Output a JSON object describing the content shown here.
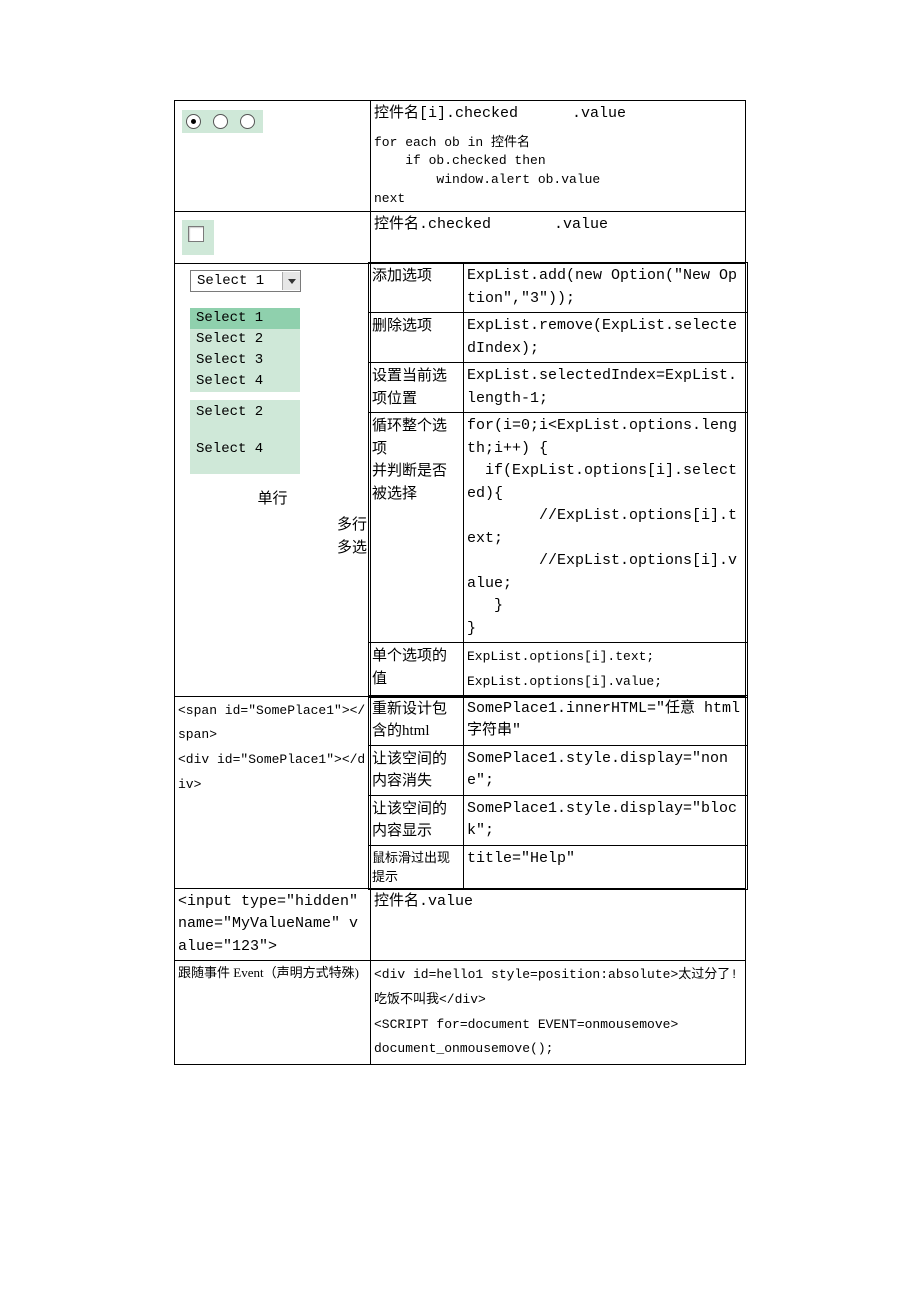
{
  "row1": {
    "prop": "控件名[i].checked      .value",
    "code": "for each ob in 控件名\n    if ob.checked then\n        window.alert ob.value\nnext"
  },
  "row2": {
    "prop": "控件名.checked       .value"
  },
  "select": {
    "combo_value": "Select 1",
    "list_a": [
      "Select 1",
      "Select 2",
      "Select 3",
      "Select 4"
    ],
    "list_b_shown": [
      "Select 2",
      "Select 4"
    ],
    "label_single": "单行",
    "label_multi": "多行\n多选",
    "ops": [
      [
        "添加选项",
        "ExpList.add(new Option(\"New Option\",\"3\"));"
      ],
      [
        "删除选项",
        "ExpList.remove(ExpList.selectedIndex);"
      ],
      [
        "设置当前选项位置",
        "ExpList.selectedIndex=ExpList.length-1;"
      ],
      [
        "循环整个选项\n并判断是否被选择",
        "for(i=0;i<ExpList.options.length;i++) {\n  if(ExpList.options[i].selected){\n        //ExpList.options[i].text;\n        //ExpList.options[i].value;\n   }\n}"
      ],
      [
        "单个选项的值",
        "ExpList.options[i].text;\nExpList.options[i].value;"
      ]
    ]
  },
  "place": {
    "src": "<span id=\"SomePlace1\"></span>\n<div id=\"SomePlace1\"></div>",
    "ops": [
      [
        "重新设计包含的html",
        "SomePlace1.innerHTML=\"任意 html 字符串\""
      ],
      [
        "让该空间的内容消失",
        "SomePlace1.style.display=\"none\";"
      ],
      [
        "让该空间的内容显示",
        "SomePlace1.style.display=\"block\";"
      ],
      [
        "鼠标滑过出现提示",
        "title=\"Help\""
      ]
    ]
  },
  "hidden": {
    "src": "<input type=\"hidden\" name=\"MyValueName\" value=\"123\">",
    "prop": "控件名.value"
  },
  "event": {
    "label": "跟随事件 Event（声明方式特殊)",
    "code": "<div id=hello1 style=position:absolute>太过分了!吃饭不叫我</div>\n<SCRIPT for=document EVENT=onmousemove>\ndocument_onmousemove();"
  }
}
